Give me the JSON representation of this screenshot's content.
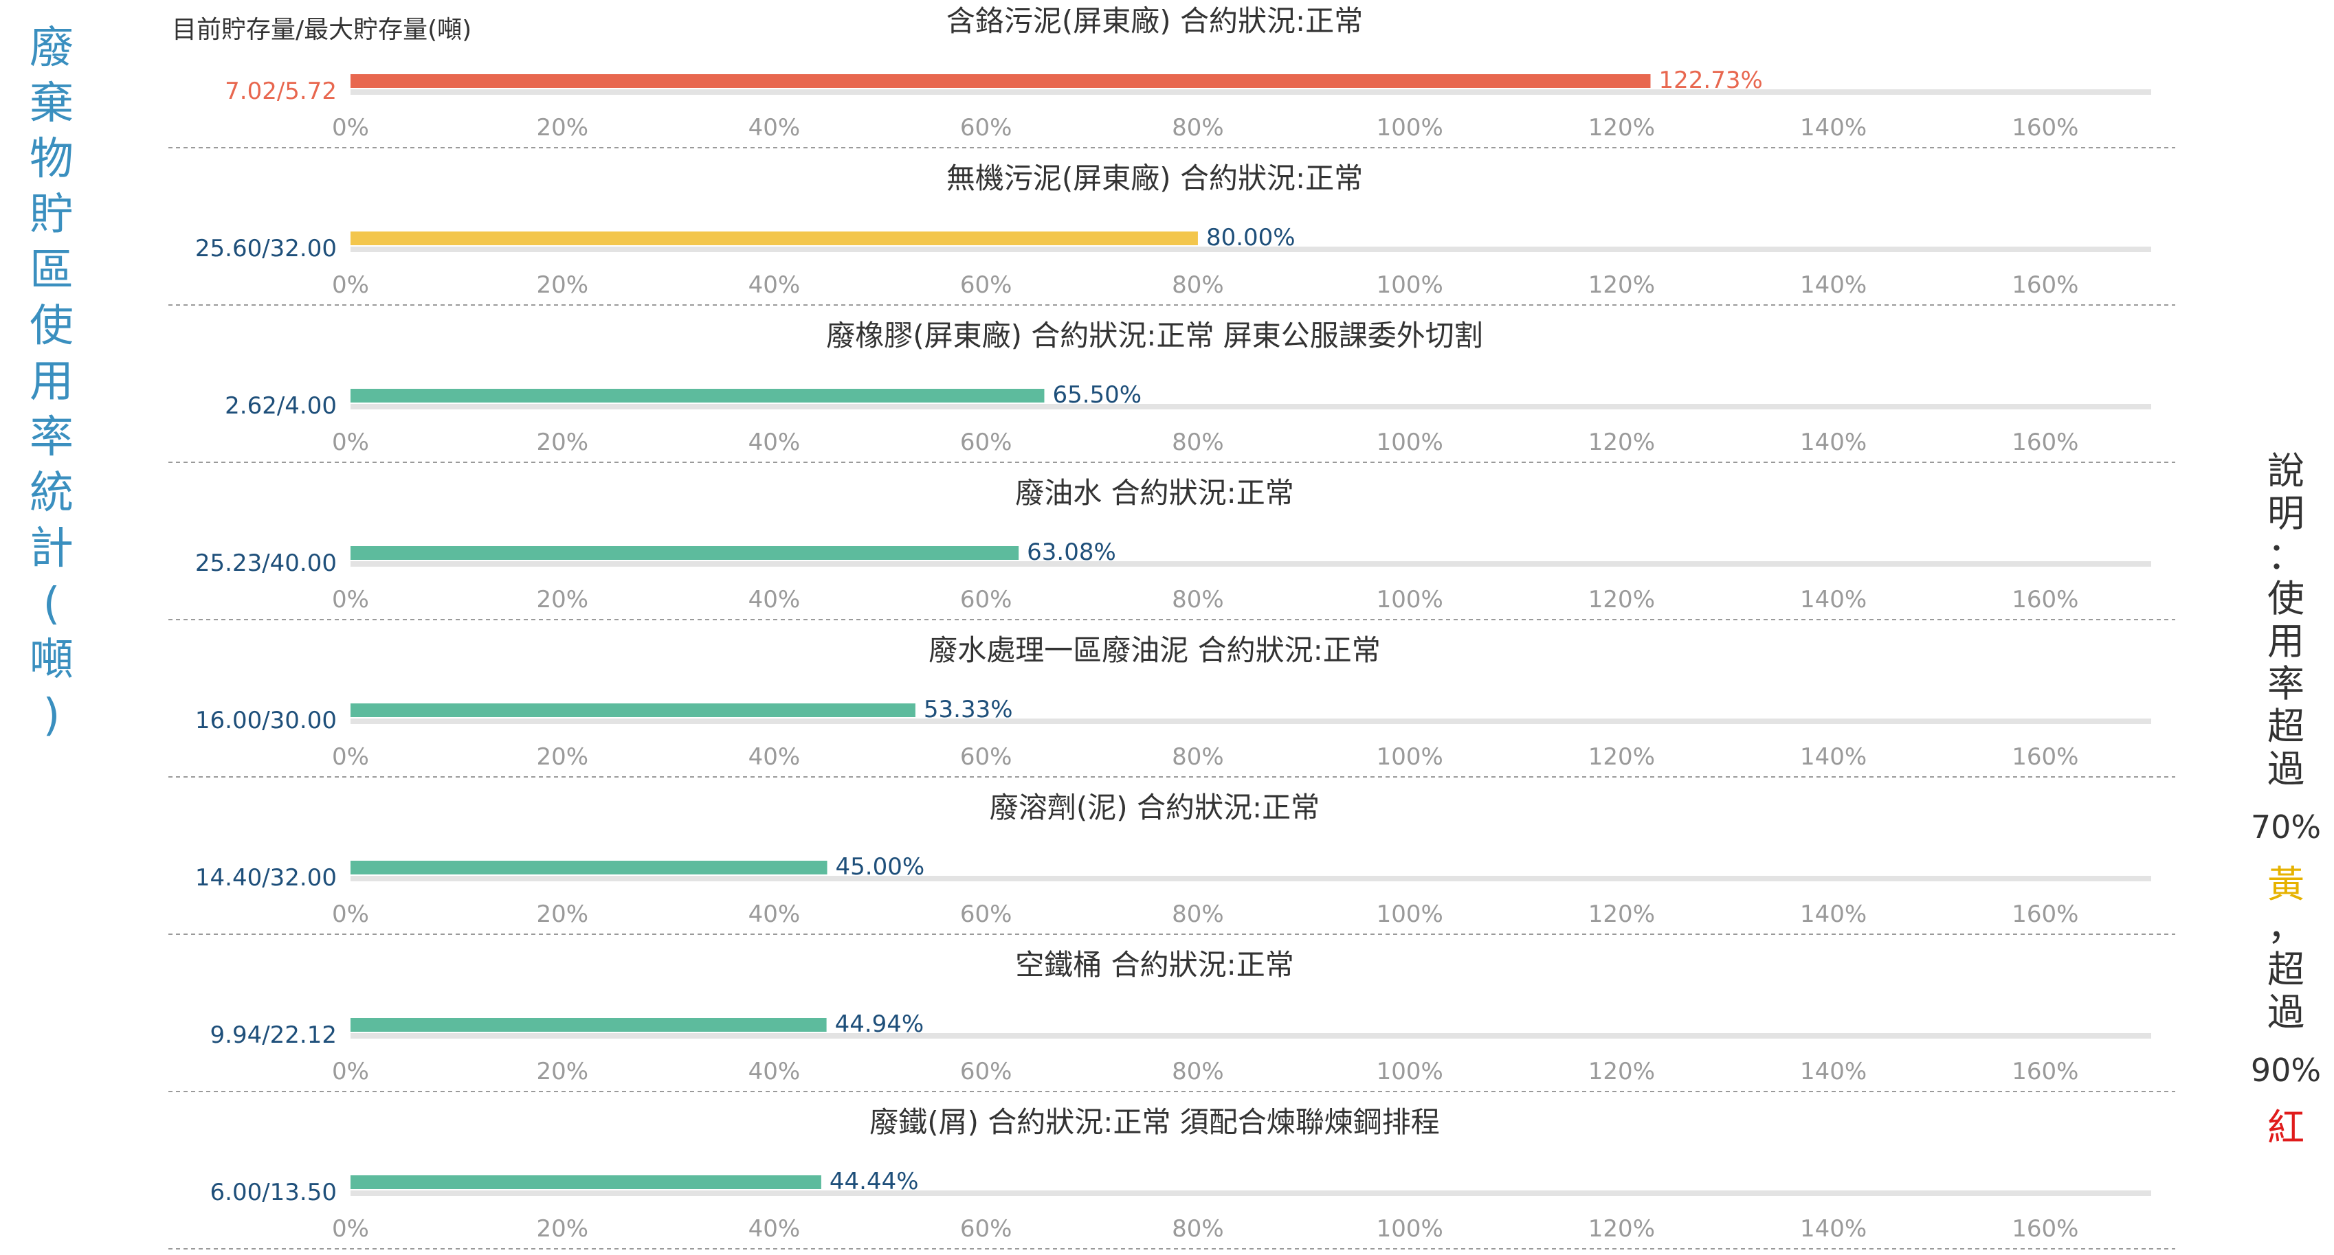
{
  "page_title": "廢棄物貯區使用率統計(噸)",
  "header_note": "目前貯存量/最大貯存量(噸)",
  "legend_note": {
    "prefix": "說明：使用率超過",
    "warn_pct": "70%",
    "warn_label": "黃",
    "sep": "，超過",
    "danger_pct": "90%",
    "danger_label": "紅"
  },
  "colors": {
    "normal": "#5dbb9d",
    "warn": "#f3c64c",
    "danger": "#e8674f",
    "normal_text": "#1e4f7a",
    "danger_text": "#e8674f",
    "track": "#e3e3e3",
    "axis_text": "#9a9a9a",
    "title_text": "#333333",
    "separator": "#9a9a9a",
    "page_title": "#3a8fbf",
    "legend_warn": "#e6b200",
    "legend_danger": "#e01b1b"
  },
  "chart_data": [
    {
      "type": "bar",
      "title": "含鉻污泥(屏東廠) 合約狀況:正常",
      "category": "7.02/5.72",
      "value": 122.73,
      "value_label": "122.73%",
      "status": "danger",
      "xlim": [
        0,
        170
      ],
      "xticks": [
        "0%",
        "20%",
        "40%",
        "60%",
        "80%",
        "100%",
        "120%",
        "140%",
        "160%"
      ]
    },
    {
      "type": "bar",
      "title": "無機污泥(屏東廠) 合約狀況:正常",
      "category": "25.60/32.00",
      "value": 80.0,
      "value_label": "80.00%",
      "status": "warn",
      "xlim": [
        0,
        170
      ],
      "xticks": [
        "0%",
        "20%",
        "40%",
        "60%",
        "80%",
        "100%",
        "120%",
        "140%",
        "160%"
      ]
    },
    {
      "type": "bar",
      "title": "廢橡膠(屏東廠) 合約狀況:正常 屏東公服課委外切割",
      "category": "2.62/4.00",
      "value": 65.5,
      "value_label": "65.50%",
      "status": "normal",
      "xlim": [
        0,
        170
      ],
      "xticks": [
        "0%",
        "20%",
        "40%",
        "60%",
        "80%",
        "100%",
        "120%",
        "140%",
        "160%"
      ]
    },
    {
      "type": "bar",
      "title": "廢油水 合約狀況:正常",
      "category": "25.23/40.00",
      "value": 63.08,
      "value_label": "63.08%",
      "status": "normal",
      "xlim": [
        0,
        170
      ],
      "xticks": [
        "0%",
        "20%",
        "40%",
        "60%",
        "80%",
        "100%",
        "120%",
        "140%",
        "160%"
      ]
    },
    {
      "type": "bar",
      "title": "廢水處理一區廢油泥 合約狀況:正常",
      "category": "16.00/30.00",
      "value": 53.33,
      "value_label": "53.33%",
      "status": "normal",
      "xlim": [
        0,
        170
      ],
      "xticks": [
        "0%",
        "20%",
        "40%",
        "60%",
        "80%",
        "100%",
        "120%",
        "140%",
        "160%"
      ]
    },
    {
      "type": "bar",
      "title": "廢溶劑(泥) 合約狀況:正常",
      "category": "14.40/32.00",
      "value": 45.0,
      "value_label": "45.00%",
      "status": "normal",
      "xlim": [
        0,
        170
      ],
      "xticks": [
        "0%",
        "20%",
        "40%",
        "60%",
        "80%",
        "100%",
        "120%",
        "140%",
        "160%"
      ]
    },
    {
      "type": "bar",
      "title": "空鐵桶 合約狀況:正常",
      "category": "9.94/22.12",
      "value": 44.94,
      "value_label": "44.94%",
      "status": "normal",
      "xlim": [
        0,
        170
      ],
      "xticks": [
        "0%",
        "20%",
        "40%",
        "60%",
        "80%",
        "100%",
        "120%",
        "140%",
        "160%"
      ]
    },
    {
      "type": "bar",
      "title": "廢鐵(屑) 合約狀況:正常 須配合煉聯煉鋼排程",
      "category": "6.00/13.50",
      "value": 44.44,
      "value_label": "44.44%",
      "status": "normal",
      "xlim": [
        0,
        170
      ],
      "xticks": [
        "0%",
        "20%",
        "40%",
        "60%",
        "80%",
        "100%",
        "120%",
        "140%",
        "160%"
      ]
    }
  ]
}
